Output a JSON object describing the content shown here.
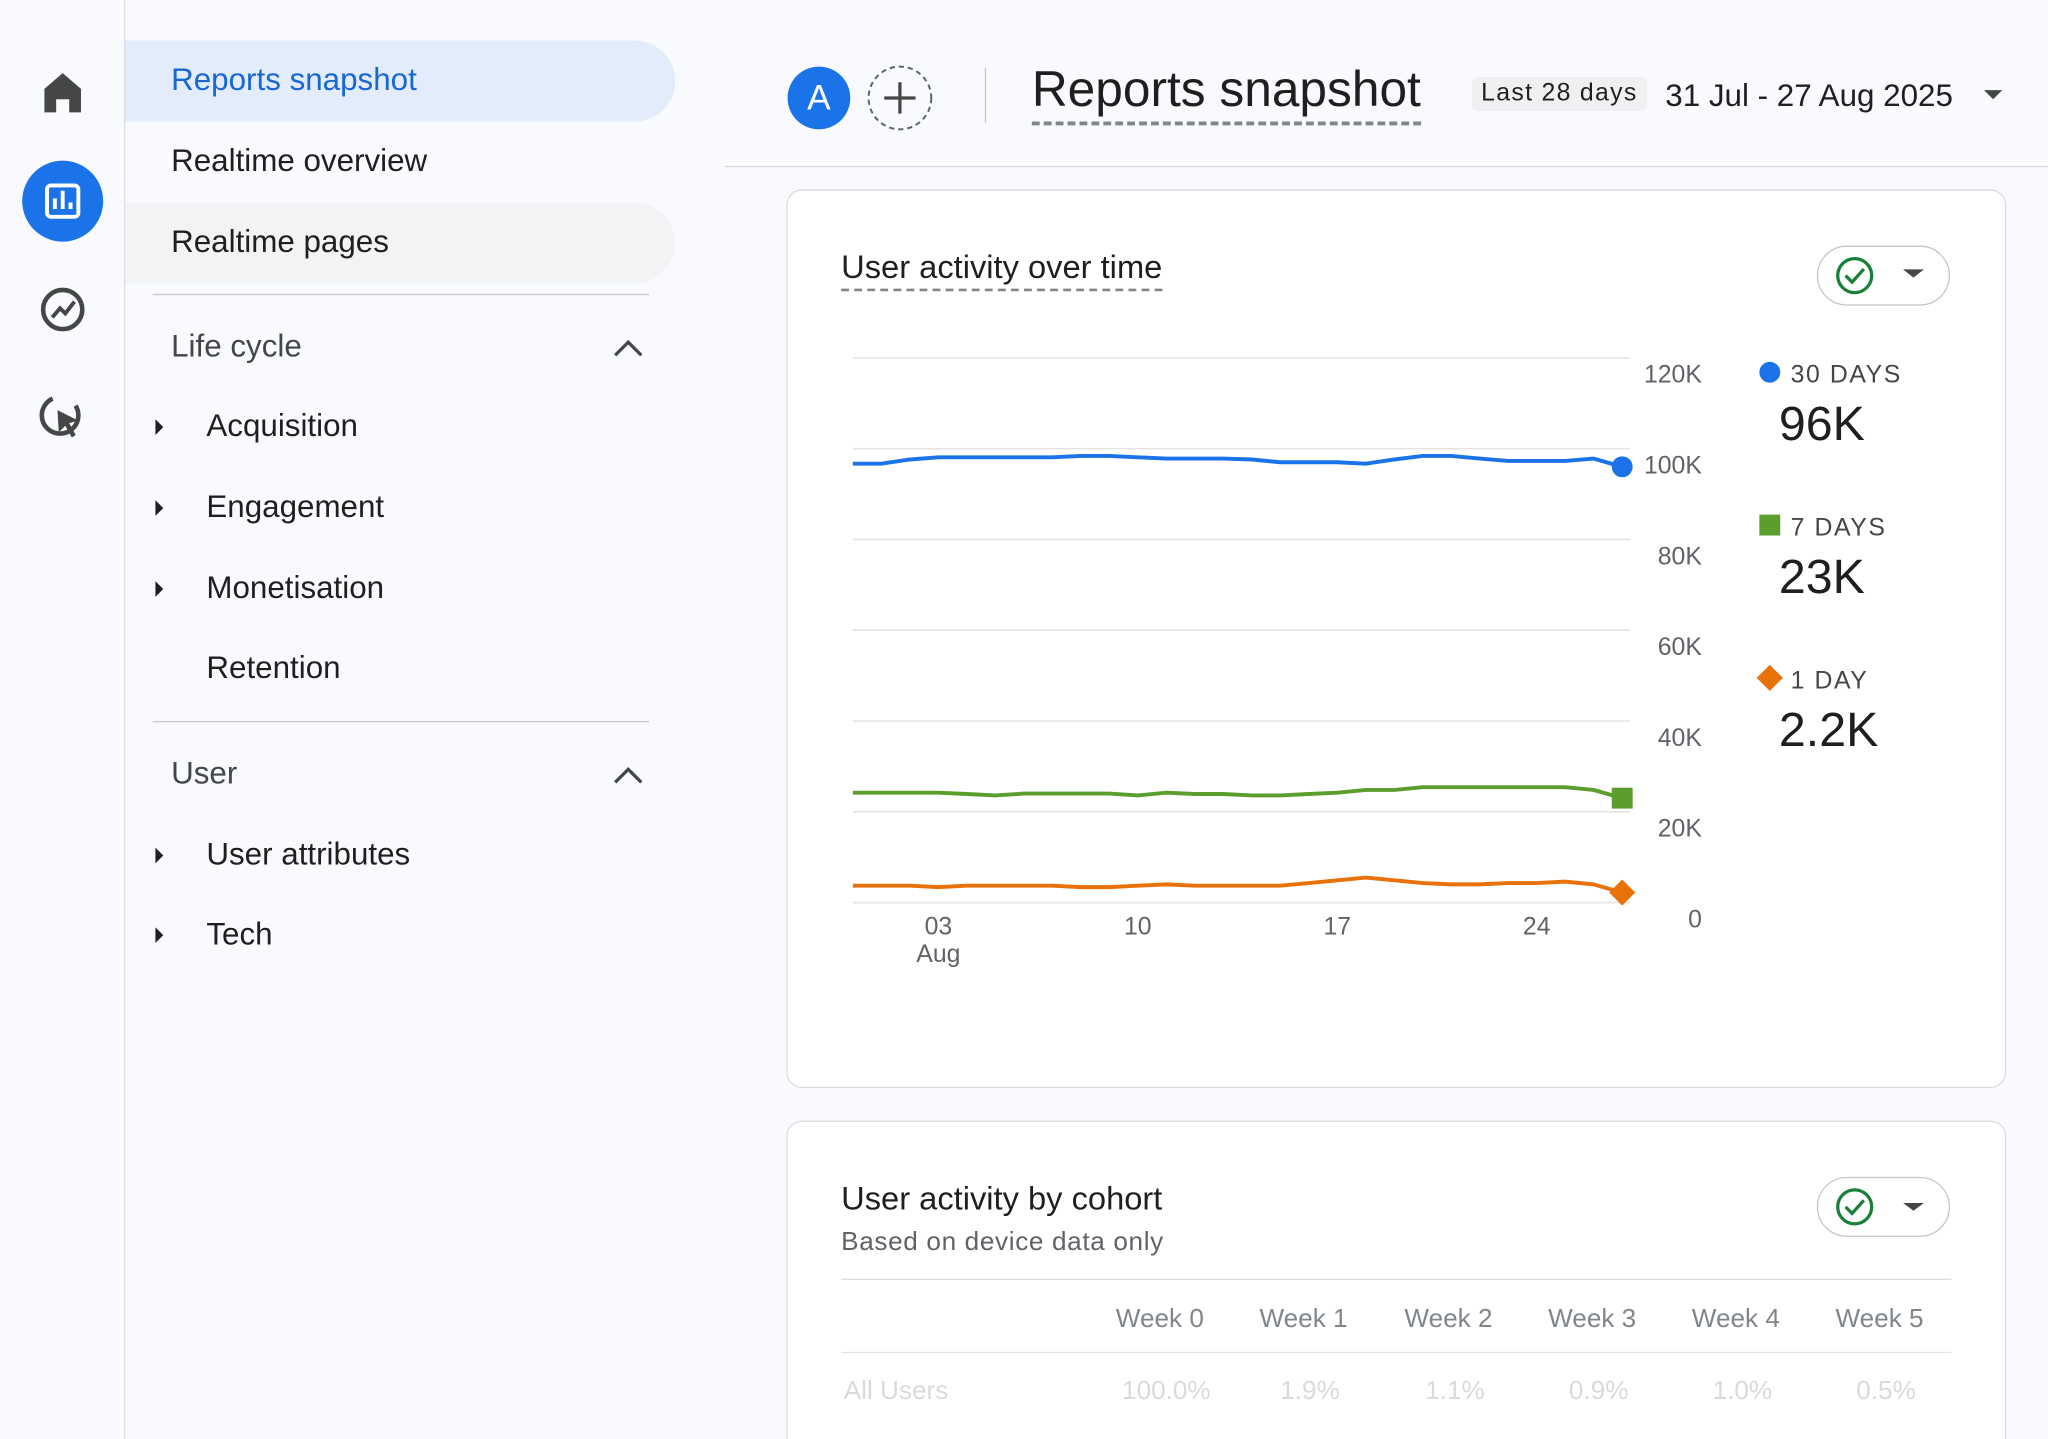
{
  "nav": {
    "items": [
      "Reports snapshot",
      "Realtime overview",
      "Realtime pages"
    ],
    "sections": [
      {
        "title": "Life cycle",
        "items": [
          "Acquisition",
          "Engagement",
          "Monetisation",
          "Retention"
        ]
      },
      {
        "title": "User",
        "items": [
          "User attributes",
          "Tech"
        ]
      }
    ]
  },
  "header": {
    "avatar": "A",
    "title": "Reports snapshot",
    "period": "Last 28 days",
    "date_range": "31 Jul - 27 Aug 2025"
  },
  "chart_data": {
    "type": "line",
    "title": "User activity over time",
    "categories": [
      null,
      null,
      null,
      "03 Aug",
      null,
      null,
      null,
      null,
      null,
      null,
      "10",
      null,
      null,
      null,
      null,
      null,
      null,
      "17",
      null,
      null,
      null,
      null,
      null,
      null,
      "24",
      null,
      null,
      null
    ],
    "ylim": [
      0,
      120000
    ],
    "yticks": [
      0,
      {
        "value": 20000,
        "label": "20K"
      },
      {
        "value": 40000,
        "label": "40K"
      },
      {
        "value": 60000,
        "label": "60K"
      },
      {
        "value": 80000,
        "label": "80K"
      },
      {
        "value": 100000,
        "label": "100K"
      },
      {
        "value": 120000,
        "label": "120K"
      }
    ],
    "grid": true,
    "series": [
      {
        "name": "30 DAYS",
        "color": "#1a73e8",
        "marker": "circle",
        "value_label": "96K",
        "values": [
          96700,
          96700,
          97600,
          98100,
          98100,
          98100,
          98100,
          98100,
          98400,
          98400,
          98100,
          97800,
          97800,
          97800,
          97600,
          97000,
          97000,
          97000,
          96700,
          97600,
          98400,
          98400,
          97800,
          97300,
          97300,
          97300,
          97800,
          96000
        ]
      },
      {
        "name": "7 DAYS",
        "color": "#5b9e2d",
        "marker": "square",
        "value_label": "23K",
        "values": [
          24200,
          24200,
          24200,
          24200,
          23900,
          23600,
          24000,
          24000,
          24000,
          24000,
          23600,
          24200,
          23900,
          23900,
          23600,
          23600,
          23900,
          24200,
          24800,
          24800,
          25400,
          25400,
          25400,
          25400,
          25400,
          25400,
          24800,
          23000
        ]
      },
      {
        "name": "1 DAY",
        "color": "#e8710a",
        "marker": "diamond",
        "value_label": "2.2K",
        "values": [
          3700,
          3700,
          3700,
          3400,
          3700,
          3700,
          3700,
          3700,
          3400,
          3400,
          3700,
          4000,
          3700,
          3700,
          3700,
          3700,
          4300,
          4900,
          5500,
          4900,
          4300,
          4000,
          4000,
          4300,
          4300,
          4600,
          4000,
          2200
        ]
      }
    ]
  },
  "cohort": {
    "title": "User activity by cohort",
    "subtitle": "Based on device data only",
    "columns": [
      "Week 0",
      "Week 1",
      "Week 2",
      "Week 3",
      "Week 4",
      "Week 5"
    ],
    "rows": [
      [
        "All Users",
        "100.0%",
        "1.9%",
        "1.1%",
        "0.9%",
        "1.0%",
        "0.5%"
      ]
    ]
  }
}
